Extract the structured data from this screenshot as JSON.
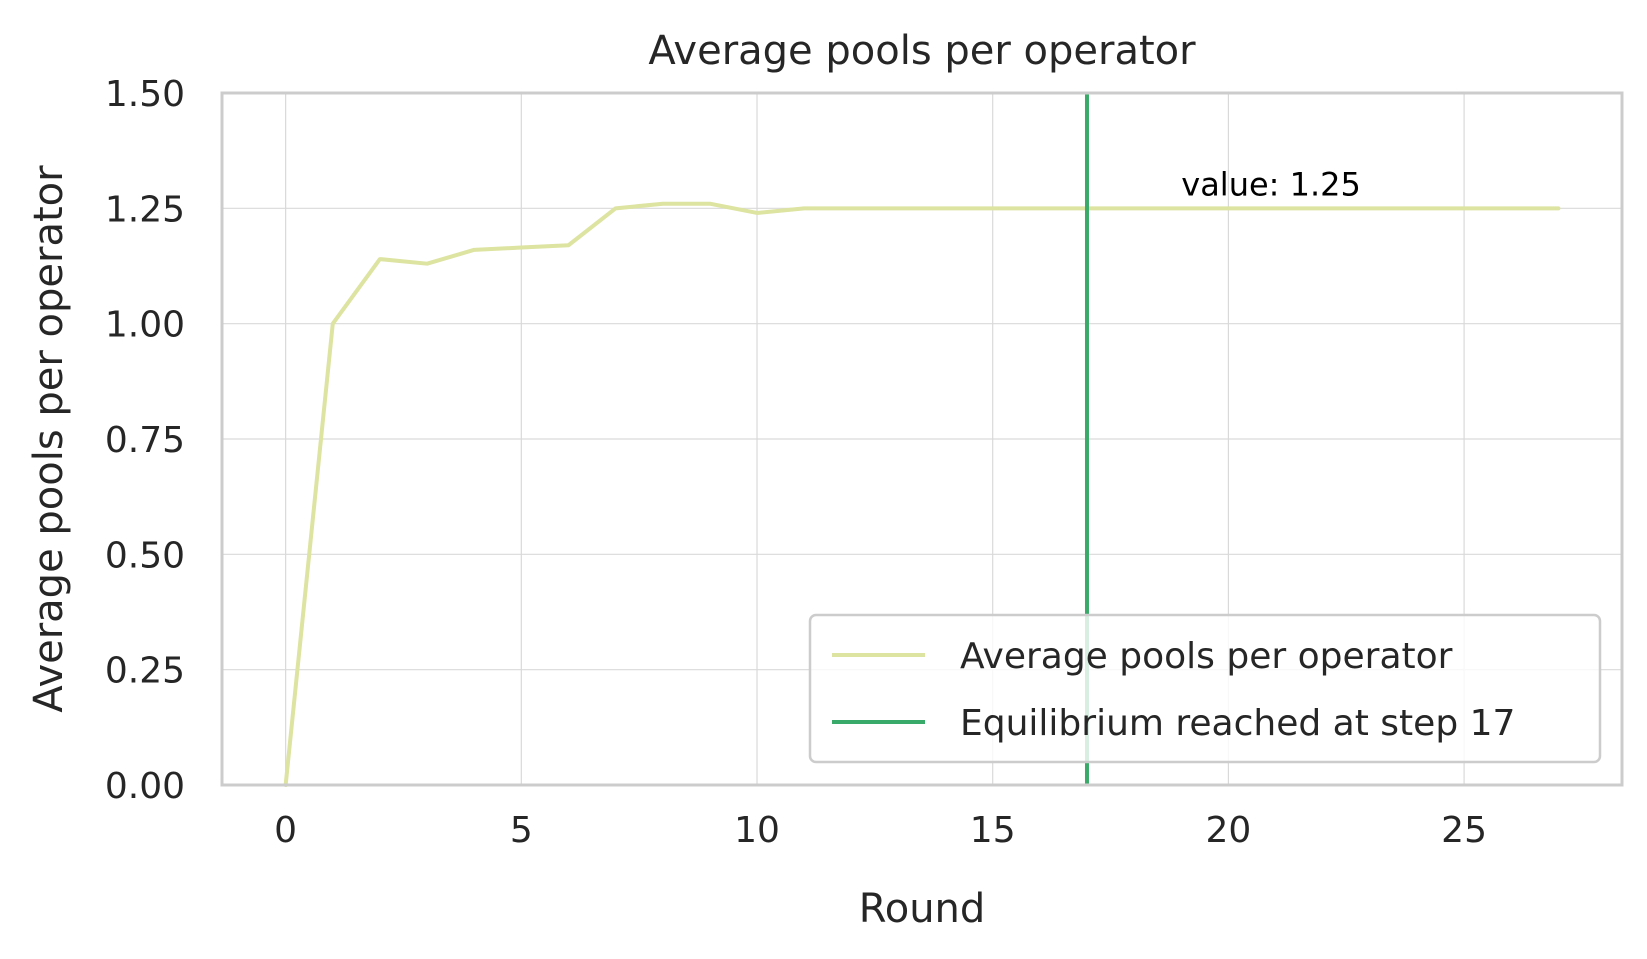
{
  "chart_data": {
    "type": "line",
    "title": "Average pools per operator",
    "xlabel": "Round",
    "ylabel": "Average pools per operator",
    "xlim": [
      -1.35,
      28.35
    ],
    "ylim": [
      0,
      1.5
    ],
    "xticks": [
      0,
      5,
      10,
      15,
      20,
      25
    ],
    "yticks": [
      0.0,
      0.25,
      0.5,
      0.75,
      1.0,
      1.25,
      1.5
    ],
    "xtick_labels": [
      "0",
      "5",
      "10",
      "15",
      "20",
      "25"
    ],
    "ytick_labels": [
      "0.00",
      "0.25",
      "0.50",
      "0.75",
      "1.00",
      "1.25",
      "1.50"
    ],
    "grid": true,
    "legend_position": "lower right",
    "series": [
      {
        "name": "Average pools per operator",
        "color": "#dde3a0",
        "x": [
          0,
          1,
          2,
          3,
          4,
          5,
          6,
          7,
          8,
          9,
          10,
          11,
          12,
          13,
          14,
          15,
          16,
          17,
          18,
          19,
          20,
          21,
          22,
          23,
          24,
          25,
          26,
          27
        ],
        "y": [
          0.0,
          1.0,
          1.14,
          1.13,
          1.16,
          1.165,
          1.17,
          1.25,
          1.26,
          1.26,
          1.24,
          1.25,
          1.25,
          1.25,
          1.25,
          1.25,
          1.25,
          1.25,
          1.25,
          1.25,
          1.25,
          1.25,
          1.25,
          1.25,
          1.25,
          1.25,
          1.25,
          1.25
        ]
      }
    ],
    "vlines": [
      {
        "name": "Equilibrium reached at step 17",
        "x": 17,
        "color": "#3aaa6a"
      }
    ],
    "annotations": [
      {
        "text": "value: 1.25",
        "x": 19,
        "y": 1.3
      }
    ]
  }
}
